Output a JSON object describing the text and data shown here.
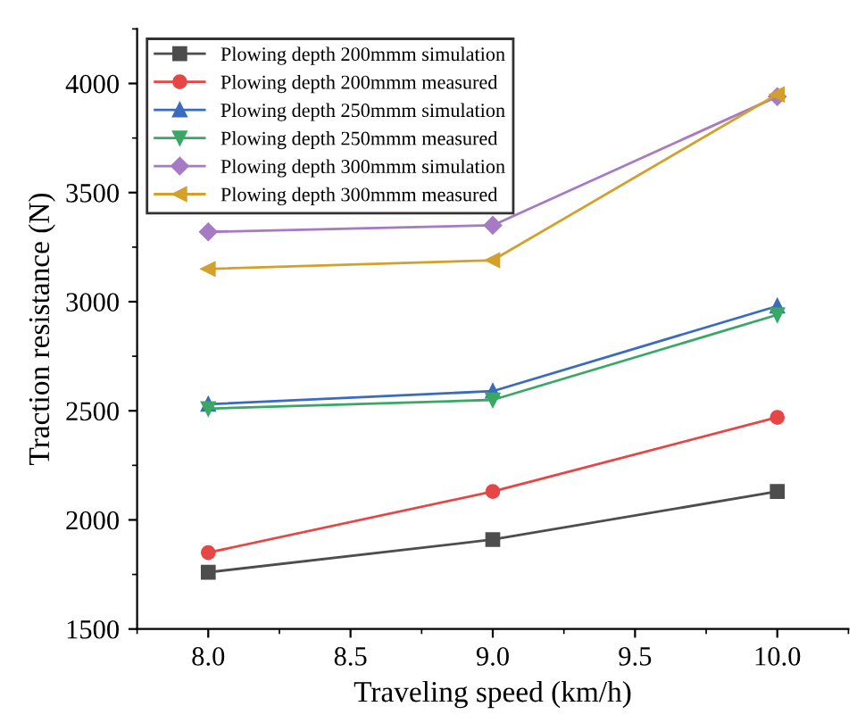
{
  "chart_data": {
    "type": "line",
    "xlabel": "Traveling speed (km/h)",
    "ylabel": "Traction resistance (N)",
    "x": [
      8.0,
      9.0,
      10.0
    ],
    "xlim": [
      7.75,
      10.25
    ],
    "xticks": [
      {
        "value": 8.0,
        "label": "8.0"
      },
      {
        "value": 8.5,
        "label": "8.5"
      },
      {
        "value": 9.0,
        "label": "9.0"
      },
      {
        "value": 9.5,
        "label": "9.5"
      },
      {
        "value": 10.0,
        "label": "10.0"
      }
    ],
    "ylim": [
      1500,
      4250
    ],
    "yticks": [
      1500,
      2000,
      2500,
      3000,
      3500,
      4000
    ],
    "grid": false,
    "legend": "top left",
    "series": [
      {
        "name": "Plowing depth 200mmm simulation",
        "color": "#4d4d4d",
        "marker": "square",
        "values": [
          1760,
          1910,
          2130
        ]
      },
      {
        "name": "Plowing depth 200mmm measured",
        "color": "#e64646",
        "marker": "circle",
        "values": [
          1850,
          2130,
          2470
        ]
      },
      {
        "name": "Plowing depth 250mmm simulation",
        "color": "#3a6bbf",
        "marker": "triangle",
        "values": [
          2530,
          2590,
          2980
        ]
      },
      {
        "name": "Plowing depth 250mmm measured",
        "color": "#3aa865",
        "marker": "triangle_down",
        "values": [
          2510,
          2550,
          2940
        ]
      },
      {
        "name": "Plowing depth 300mmm simulation",
        "color": "#a77bc4",
        "marker": "diamond",
        "values": [
          3320,
          3350,
          3940
        ]
      },
      {
        "name": "Plowing depth 300mmm measured",
        "color": "#d4a02c",
        "marker": "triangle_left",
        "values": [
          3150,
          3190,
          3950
        ]
      }
    ]
  }
}
